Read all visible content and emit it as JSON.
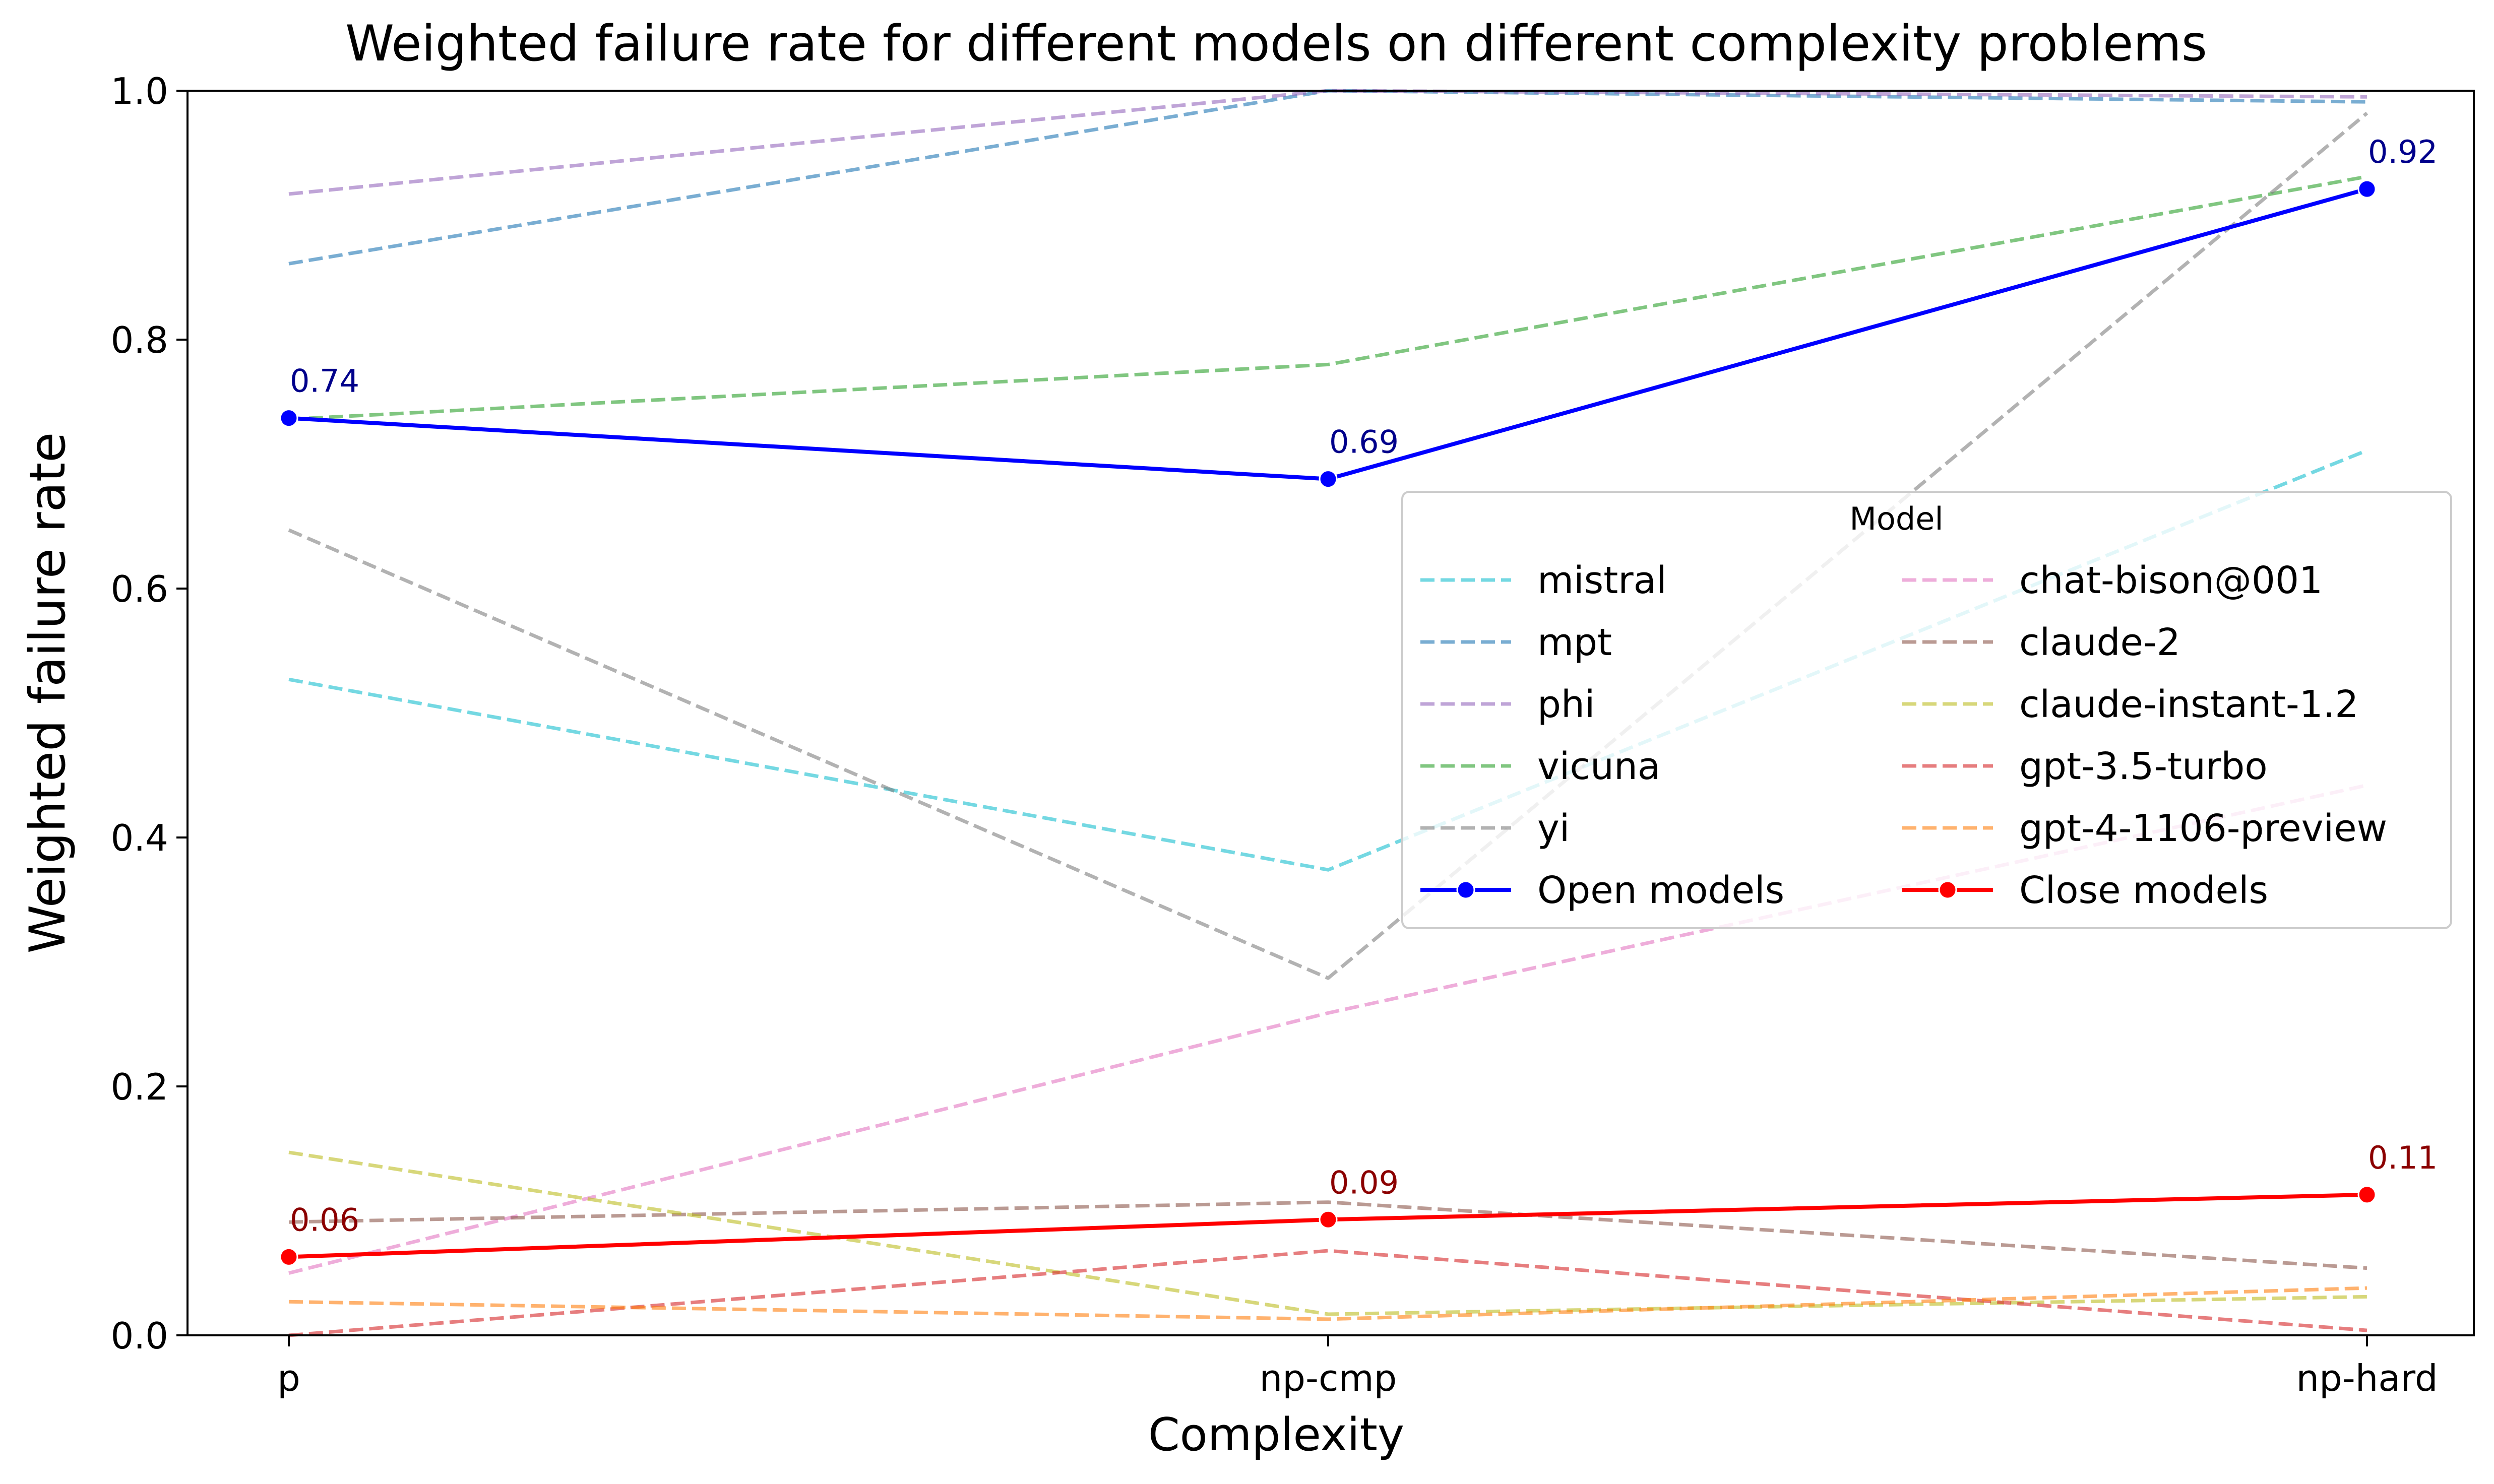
{
  "chart_data": {
    "type": "line",
    "title": "Weighted failure rate for different models on different complexity problems",
    "xlabel": "Complexity",
    "ylabel": "Weighted failure rate",
    "categories": [
      "p",
      "np-cmp",
      "np-hard"
    ],
    "ylim": [
      0,
      1.0
    ],
    "yticks": [
      "0.0",
      "0.2",
      "0.4",
      "0.6",
      "0.8",
      "1.0"
    ],
    "grid": false,
    "legend": {
      "title": "Model",
      "placement": "center-right",
      "columns": 2
    },
    "series": [
      {
        "name": "mistral",
        "values": [
          0.527,
          0.374,
          0.711
        ],
        "color": "#17becf",
        "style": "dashed",
        "alpha": 0.6
      },
      {
        "name": "mpt",
        "values": [
          0.861,
          1.0,
          0.991
        ],
        "color": "#1f77b4",
        "style": "dashed",
        "alpha": 0.6
      },
      {
        "name": "phi",
        "values": [
          0.917,
          1.0,
          0.995
        ],
        "color": "#9467bd",
        "style": "dashed",
        "alpha": 0.6
      },
      {
        "name": "vicuna",
        "values": [
          0.736,
          0.78,
          0.931
        ],
        "color": "#2ca02c",
        "style": "dashed",
        "alpha": 0.6
      },
      {
        "name": "yi",
        "values": [
          0.647,
          0.287,
          0.982
        ],
        "color": "#7f7f7f",
        "style": "dashed",
        "alpha": 0.6
      },
      {
        "name": "Open models",
        "values": [
          0.737,
          0.688,
          0.921
        ],
        "color": "#0000ff",
        "style": "solid",
        "markers": true,
        "labels": [
          "0.74",
          "0.69",
          "0.92"
        ],
        "label_color": "#00008b"
      },
      {
        "name": "chat-bison@001",
        "values": [
          0.05,
          0.259,
          0.442
        ],
        "color": "#e377c2",
        "style": "dashed",
        "alpha": 0.6
      },
      {
        "name": "claude-2",
        "values": [
          0.091,
          0.107,
          0.054
        ],
        "color": "#8c564b",
        "style": "dashed",
        "alpha": 0.6
      },
      {
        "name": "claude-instant-1.2",
        "values": [
          0.147,
          0.017,
          0.031
        ],
        "color": "#bcbd22",
        "style": "dashed",
        "alpha": 0.6
      },
      {
        "name": "gpt-3.5-turbo",
        "values": [
          0.0,
          0.068,
          0.004
        ],
        "color": "#d62728",
        "style": "dashed",
        "alpha": 0.6
      },
      {
        "name": "gpt-4-1106-preview",
        "values": [
          0.027,
          0.013,
          0.038
        ],
        "color": "#ff7f0e",
        "style": "dashed",
        "alpha": 0.6
      },
      {
        "name": "Close models",
        "values": [
          0.063,
          0.093,
          0.113
        ],
        "color": "#ff0000",
        "style": "solid",
        "markers": true,
        "labels": [
          "0.06",
          "0.09",
          "0.11"
        ],
        "label_color": "#8b0000"
      }
    ]
  }
}
